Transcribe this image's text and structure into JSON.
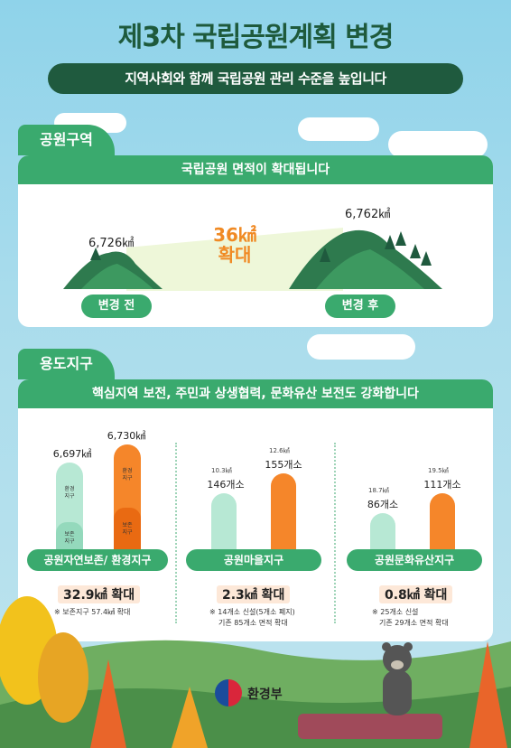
{
  "header": {
    "title": "제3차 국립공원계획 변경",
    "subtitle": "지역사회와 함께 국립공원 관리 수준을 높입니다"
  },
  "section1": {
    "tab": "공원구역",
    "band": "국립공원 면적이 확대됩니다",
    "before_area": "6,726㎢",
    "after_area": "6,762㎢",
    "increase_value": "36㎢",
    "increase_word": "확대",
    "before_label": "변경 전",
    "after_label": "변경 후"
  },
  "section2": {
    "tab": "용도지구",
    "band": "핵심지역 보전, 주민과 상생협력, 문화유산 보전도 강화합니다",
    "col1": {
      "left_value": "6,697㎢",
      "right_value": "6,730㎢",
      "left_top_text": "환경\n지구",
      "left_bottom_text": "보존\n지구",
      "right_top_text": "환경\n지구",
      "right_bottom_text": "보존\n지구",
      "title": "공원자연보존/ 환경지구",
      "result": "32.9㎢ 확대",
      "note": "※ 보존지구 57.4㎢ 확대"
    },
    "col2": {
      "left_small": "10.3㎢",
      "left_count": "146개소",
      "right_small": "12.6㎢",
      "right_count": "155개소",
      "title": "공원마을지구",
      "result": "2.3㎢ 확대",
      "note_line1": "※ 14개소 신설(5개소 폐지)",
      "note_line2": "기존 85개소 면적 확대"
    },
    "col3": {
      "left_small": "18.7㎢",
      "left_count": "86개소",
      "right_small": "19.5㎢",
      "right_count": "111개소",
      "title": "공원문화유산지구",
      "result": "0.8㎢ 확대",
      "note_line1": "※ 25개소 신설",
      "note_line2": "기존 29개소 면적 확대"
    }
  },
  "footer": {
    "ministry": "환경부"
  },
  "colors": {
    "accent_green": "#3aaa6e",
    "dark_green": "#1f5a3e",
    "orange": "#f5862a",
    "mint": "#b7e8d4"
  }
}
